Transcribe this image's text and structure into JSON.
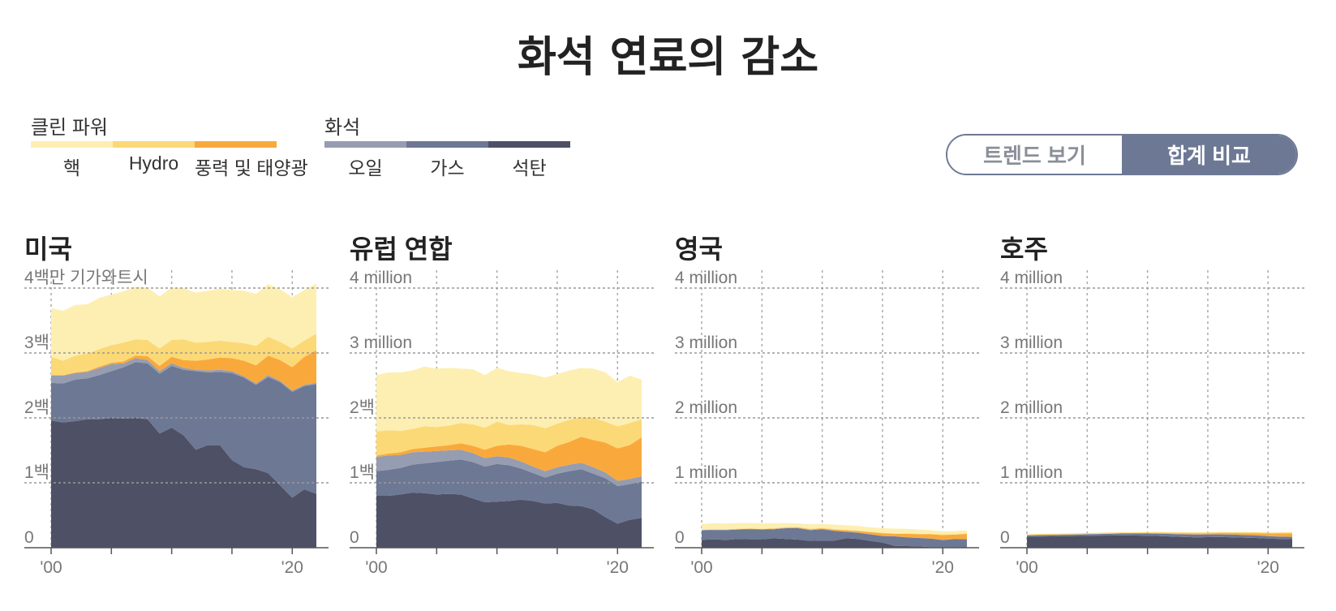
{
  "title": "화석 연료의 감소",
  "legend": {
    "clean": {
      "title": "클린 파워",
      "items": [
        {
          "label": "핵",
          "color": "#fdefb2"
        },
        {
          "label": "Hydro",
          "color": "#fcd977"
        },
        {
          "label": "풍력 및 태양광",
          "color": "#f9a93b"
        }
      ]
    },
    "fossil": {
      "title": "화석",
      "items": [
        {
          "label": "오일",
          "color": "#969db1"
        },
        {
          "label": "가스",
          "color": "#6d7894"
        },
        {
          "label": "석탄",
          "color": "#4e5165"
        }
      ]
    }
  },
  "toggle": {
    "trend_label": "트렌드 보기",
    "total_label": "합계 비교",
    "active": "total"
  },
  "panels": [
    {
      "title": "미국",
      "ytick_labels": [
        "4백만 기가와트시",
        "3백",
        "2백",
        "1백",
        "0"
      ]
    },
    {
      "title": "유럽 연합",
      "ytick_labels": [
        "4 million",
        "3 million",
        "2백",
        "1백",
        "0"
      ]
    },
    {
      "title": "영국",
      "ytick_labels": [
        "4 million",
        "3 million",
        "2 million",
        "1 million",
        "0"
      ]
    },
    {
      "title": "호주",
      "ytick_labels": [
        "4 million",
        "3 million",
        "2 million",
        "1 million",
        "0"
      ]
    }
  ],
  "chart_data": {
    "type": "area",
    "stacked": true,
    "x": [
      2000,
      2001,
      2002,
      2003,
      2004,
      2005,
      2006,
      2007,
      2008,
      2009,
      2010,
      2011,
      2012,
      2013,
      2014,
      2015,
      2016,
      2017,
      2018,
      2019,
      2020,
      2021,
      2022
    ],
    "xlim": [
      2000,
      2022
    ],
    "ylim": [
      0,
      4000000
    ],
    "yticks": [
      0,
      1000000,
      2000000,
      3000000,
      4000000
    ],
    "xtick_labels": [
      "'00",
      "'20"
    ],
    "grid": true,
    "series_order": [
      "석탄",
      "가스",
      "오일",
      "풍력 및 태양광",
      "Hydro",
      "핵"
    ],
    "charts": [
      {
        "title": "미국",
        "series": [
          {
            "name": "석탄",
            "values": [
              1960000,
              1930000,
              1950000,
              1980000,
              1980000,
              2000000,
              1990000,
              2000000,
              1980000,
              1760000,
              1850000,
              1730000,
              1510000,
              1580000,
              1580000,
              1350000,
              1240000,
              1210000,
              1150000,
              960000,
              770000,
              900000,
              830000
            ]
          },
          {
            "name": "가스",
            "values": [
              580000,
              600000,
              640000,
              630000,
              680000,
              720000,
              790000,
              860000,
              860000,
              920000,
              950000,
              1010000,
              1210000,
              1120000,
              1130000,
              1340000,
              1380000,
              1300000,
              1480000,
              1590000,
              1630000,
              1590000,
              1690000
            ]
          },
          {
            "name": "오일",
            "values": [
              110000,
              120000,
              100000,
              100000,
              110000,
              110000,
              60000,
              60000,
              50000,
              40000,
              40000,
              30000,
              20000,
              30000,
              30000,
              30000,
              20000,
              20000,
              30000,
              20000,
              20000,
              20000,
              20000
            ]
          },
          {
            "name": "풍력 및 태양광",
            "values": [
              10000,
              10000,
              10000,
              10000,
              20000,
              20000,
              30000,
              40000,
              60000,
              80000,
              100000,
              120000,
              140000,
              170000,
              190000,
              200000,
              240000,
              280000,
              300000,
              320000,
              360000,
              430000,
              500000
            ]
          },
          {
            "name": "Hydro",
            "values": [
              280000,
              220000,
              260000,
              270000,
              270000,
              270000,
              290000,
              250000,
              250000,
              270000,
              260000,
              320000,
              280000,
              270000,
              260000,
              250000,
              270000,
              300000,
              290000,
              280000,
              290000,
              250000,
              260000
            ]
          },
          {
            "name": "핵",
            "values": [
              750000,
              770000,
              780000,
              760000,
              790000,
              780000,
              790000,
              810000,
              810000,
              800000,
              810000,
              790000,
              770000,
              790000,
              800000,
              800000,
              810000,
              800000,
              810000,
              810000,
              790000,
              780000,
              770000
            ]
          }
        ]
      },
      {
        "title": "유럽 연합",
        "series": [
          {
            "name": "석탄",
            "values": [
              800000,
              800000,
              820000,
              850000,
              840000,
              820000,
              830000,
              820000,
              760000,
              700000,
              710000,
              720000,
              740000,
              720000,
              680000,
              690000,
              650000,
              640000,
              590000,
              470000,
              370000,
              430000,
              460000
            ]
          },
          {
            "name": "가스",
            "values": [
              380000,
              400000,
              410000,
              430000,
              460000,
              500000,
              510000,
              540000,
              560000,
              550000,
              580000,
              550000,
              480000,
              430000,
              400000,
              450000,
              530000,
              570000,
              550000,
              600000,
              580000,
              550000,
              560000
            ]
          },
          {
            "name": "오일",
            "values": [
              220000,
              220000,
              200000,
              190000,
              180000,
              170000,
              160000,
              150000,
              140000,
              130000,
              120000,
              120000,
              110000,
              100000,
              100000,
              100000,
              100000,
              100000,
              100000,
              90000,
              80000,
              80000,
              80000
            ]
          },
          {
            "name": "풍력 및 태양광",
            "values": [
              20000,
              30000,
              40000,
              50000,
              60000,
              70000,
              80000,
              100000,
              110000,
              130000,
              160000,
              200000,
              240000,
              270000,
              290000,
              330000,
              350000,
              400000,
              420000,
              460000,
              500000,
              520000,
              600000
            ]
          },
          {
            "name": "Hydro",
            "values": [
              370000,
              360000,
              330000,
              310000,
              330000,
              300000,
              300000,
              310000,
              330000,
              340000,
              370000,
              300000,
              330000,
              370000,
              370000,
              340000,
              340000,
              300000,
              340000,
              320000,
              340000,
              340000,
              280000
            ]
          },
          {
            "name": "핵",
            "values": [
              870000,
              890000,
              900000,
              900000,
              920000,
              900000,
              890000,
              840000,
              850000,
              810000,
              830000,
              830000,
              790000,
              780000,
              780000,
              770000,
              760000,
              760000,
              760000,
              760000,
              680000,
              730000,
              610000
            ]
          }
        ]
      },
      {
        "title": "영국",
        "series": [
          {
            "name": "석탄",
            "values": [
              120000,
              130000,
              120000,
              135000,
              130000,
              130000,
              145000,
              135000,
              125000,
              105000,
              110000,
              110000,
              145000,
              135000,
              105000,
              80000,
              30000,
              25000,
              20000,
              10000,
              8000,
              10000,
              5000
            ]
          },
          {
            "name": "가스",
            "values": [
              145000,
              140000,
              150000,
              145000,
              155000,
              150000,
              140000,
              165000,
              175000,
              165000,
              175000,
              150000,
              100000,
              95000,
              100000,
              100000,
              145000,
              135000,
              130000,
              130000,
              110000,
              125000,
              125000
            ]
          },
          {
            "name": "오일",
            "values": [
              8000,
              8000,
              6000,
              5000,
              5000,
              5000,
              6000,
              5000,
              5000,
              5000,
              4000,
              3000,
              3000,
              3000,
              2000,
              2000,
              2000,
              2000,
              2000,
              2000,
              2000,
              2000,
              2000
            ]
          },
          {
            "name": "풍력 및 태양광",
            "values": [
              1000,
              1000,
              2000,
              2000,
              3000,
              3000,
              4000,
              5000,
              7000,
              9000,
              10000,
              15000,
              20000,
              24000,
              32000,
              40000,
              37000,
              50000,
              57000,
              64000,
              75000,
              65000,
              80000
            ]
          },
          {
            "name": "Hydro",
            "values": [
              8000,
              7000,
              8000,
              6000,
              7000,
              8000,
              8000,
              9000,
              9000,
              9000,
              7000,
              9000,
              8000,
              8000,
              9000,
              9000,
              8000,
              9000,
              8000,
              9000,
              9000,
              8000,
              8000
            ]
          },
          {
            "name": "핵",
            "values": [
              85000,
              90000,
              88000,
              88000,
              80000,
              82000,
              75000,
              63000,
              52000,
              69000,
              62000,
              69000,
              70000,
              71000,
              64000,
              70000,
              72000,
              70000,
              65000,
              56000,
              50000,
              46000,
              48000
            ]
          }
        ]
      },
      {
        "title": "호주",
        "series": [
          {
            "name": "석탄",
            "values": [
              170000,
              172000,
              175000,
              178000,
              180000,
              183000,
              186000,
              188000,
              190000,
              188000,
              185000,
              180000,
              172000,
              165000,
              160000,
              163000,
              165000,
              160000,
              155000,
              150000,
              140000,
              135000,
              132000
            ]
          },
          {
            "name": "가스",
            "values": [
              20000,
              21000,
              22000,
              22000,
              23000,
              24000,
              25000,
              27000,
              29000,
              31000,
              34000,
              36000,
              39000,
              41000,
              42000,
              41000,
              40000,
              42000,
              41000,
              40000,
              38000,
              36000,
              35000
            ]
          },
          {
            "name": "오일",
            "values": [
              2000,
              2000,
              2000,
              2000,
              2000,
              2000,
              2000,
              2000,
              2000,
              2000,
              2000,
              2000,
              2000,
              2000,
              2000,
              2000,
              2000,
              2000,
              2000,
              2000,
              2000,
              2000,
              2000
            ]
          },
          {
            "name": "풍력 및 태양광",
            "values": [
              500,
              800,
              1200,
              1500,
              2000,
              2500,
              3000,
              4000,
              5000,
              6000,
              7000,
              8000,
              10000,
              12000,
              14000,
              16000,
              18000,
              21000,
              26000,
              32000,
              38000,
              45000,
              52000
            ]
          },
          {
            "name": "Hydro",
            "values": [
              16000,
              16000,
              16000,
              16000,
              15000,
              15000,
              14000,
              13000,
              12000,
              12000,
              13000,
              16000,
              14000,
              18000,
              16000,
              14000,
              17000,
              16000,
              17000,
              15000,
              15000,
              16000,
              17000
            ]
          },
          {
            "name": "핵",
            "values": [
              0,
              0,
              0,
              0,
              0,
              0,
              0,
              0,
              0,
              0,
              0,
              0,
              0,
              0,
              0,
              0,
              0,
              0,
              0,
              0,
              0,
              0,
              0
            ]
          }
        ]
      }
    ]
  }
}
